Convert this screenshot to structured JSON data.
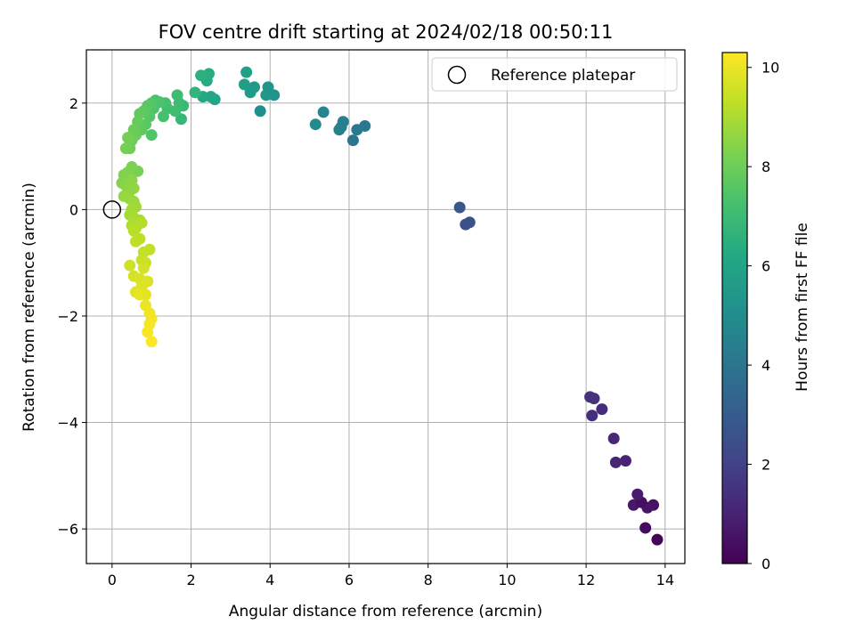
{
  "chart_data": {
    "type": "scatter",
    "title": "FOV centre drift starting at 2024/02/18 00:50:11",
    "xlabel": "Angular distance from reference (arcmin)",
    "ylabel": "Rotation from reference (arcmin)",
    "xlim": [
      -0.65,
      14.5
    ],
    "ylim": [
      -6.65,
      3.0
    ],
    "xticks": [
      0,
      2,
      4,
      6,
      8,
      10,
      12,
      14
    ],
    "yticks": [
      -6,
      -4,
      -2,
      0,
      2
    ],
    "xtick_labels": [
      "0",
      "2",
      "4",
      "6",
      "8",
      "10",
      "12",
      "14"
    ],
    "ytick_labels": [
      "−6",
      "−4",
      "−2",
      "0",
      "2"
    ],
    "grid": true,
    "legend": {
      "position": "upper right",
      "entries": [
        "Reference platepar"
      ]
    },
    "reference": {
      "x": 0,
      "y": 0,
      "label": "Reference platepar"
    },
    "colorbar": {
      "label": "Hours from first FF file",
      "colormap": "viridis",
      "range": [
        0,
        10.3
      ],
      "ticks": [
        0,
        2,
        4,
        6,
        8,
        10
      ],
      "tick_labels": [
        "0",
        "2",
        "4",
        "6",
        "8",
        "10"
      ]
    },
    "points": [
      {
        "x": 13.8,
        "y": -6.2,
        "h": 0.1
      },
      {
        "x": 13.5,
        "y": -5.98,
        "h": 0.3
      },
      {
        "x": 13.7,
        "y": -5.55,
        "h": 0.5
      },
      {
        "x": 13.55,
        "y": -5.6,
        "h": 0.6
      },
      {
        "x": 13.2,
        "y": -5.55,
        "h": 0.7
      },
      {
        "x": 13.4,
        "y": -5.5,
        "h": 0.4
      },
      {
        "x": 13.3,
        "y": -5.35,
        "h": 0.8
      },
      {
        "x": 13.0,
        "y": -4.72,
        "h": 1.0
      },
      {
        "x": 12.75,
        "y": -4.75,
        "h": 1.1
      },
      {
        "x": 12.7,
        "y": -4.3,
        "h": 1.2
      },
      {
        "x": 12.4,
        "y": -3.75,
        "h": 1.3
      },
      {
        "x": 12.15,
        "y": -3.87,
        "h": 1.4
      },
      {
        "x": 12.2,
        "y": -3.55,
        "h": 1.45
      },
      {
        "x": 12.1,
        "y": -3.52,
        "h": 1.5
      },
      {
        "x": 8.95,
        "y": -0.28,
        "h": 2.5
      },
      {
        "x": 9.05,
        "y": -0.24,
        "h": 2.6
      },
      {
        "x": 8.8,
        "y": 0.04,
        "h": 2.8
      },
      {
        "x": 6.1,
        "y": 1.3,
        "h": 4.0
      },
      {
        "x": 6.4,
        "y": 1.57,
        "h": 4.1
      },
      {
        "x": 6.2,
        "y": 1.5,
        "h": 4.2
      },
      {
        "x": 5.8,
        "y": 1.55,
        "h": 4.3
      },
      {
        "x": 5.85,
        "y": 1.65,
        "h": 4.4
      },
      {
        "x": 5.75,
        "y": 1.5,
        "h": 4.5
      },
      {
        "x": 5.35,
        "y": 1.83,
        "h": 4.7
      },
      {
        "x": 5.15,
        "y": 1.6,
        "h": 4.9
      },
      {
        "x": 3.75,
        "y": 1.85,
        "h": 5.1
      },
      {
        "x": 4.1,
        "y": 2.15,
        "h": 5.2
      },
      {
        "x": 3.95,
        "y": 2.3,
        "h": 5.3
      },
      {
        "x": 3.9,
        "y": 2.15,
        "h": 5.4
      },
      {
        "x": 3.6,
        "y": 2.3,
        "h": 5.5
      },
      {
        "x": 3.5,
        "y": 2.2,
        "h": 5.6
      },
      {
        "x": 3.35,
        "y": 2.35,
        "h": 5.7
      },
      {
        "x": 3.4,
        "y": 2.58,
        "h": 5.8
      },
      {
        "x": 2.6,
        "y": 2.07,
        "h": 6.0
      },
      {
        "x": 2.5,
        "y": 2.12,
        "h": 6.1
      },
      {
        "x": 2.3,
        "y": 2.12,
        "h": 6.2
      },
      {
        "x": 2.4,
        "y": 2.42,
        "h": 6.3
      },
      {
        "x": 2.45,
        "y": 2.55,
        "h": 6.4
      },
      {
        "x": 2.25,
        "y": 2.52,
        "h": 6.5
      },
      {
        "x": 2.1,
        "y": 2.2,
        "h": 6.7
      },
      {
        "x": 1.75,
        "y": 1.7,
        "h": 6.8
      },
      {
        "x": 1.8,
        "y": 1.95,
        "h": 6.9
      },
      {
        "x": 1.7,
        "y": 2.0,
        "h": 7.0
      },
      {
        "x": 1.65,
        "y": 2.15,
        "h": 7.05
      },
      {
        "x": 1.6,
        "y": 1.85,
        "h": 7.1
      },
      {
        "x": 1.4,
        "y": 1.9,
        "h": 7.15
      },
      {
        "x": 1.35,
        "y": 2.0,
        "h": 7.2
      },
      {
        "x": 1.3,
        "y": 1.75,
        "h": 7.25
      },
      {
        "x": 1.2,
        "y": 2.02,
        "h": 7.3
      },
      {
        "x": 1.1,
        "y": 2.05,
        "h": 7.35
      },
      {
        "x": 1.05,
        "y": 1.9,
        "h": 7.4
      },
      {
        "x": 1.0,
        "y": 1.4,
        "h": 7.45
      },
      {
        "x": 1.0,
        "y": 2.0,
        "h": 7.5
      },
      {
        "x": 0.95,
        "y": 1.75,
        "h": 7.55
      },
      {
        "x": 0.9,
        "y": 1.95,
        "h": 7.6
      },
      {
        "x": 0.85,
        "y": 1.6,
        "h": 7.65
      },
      {
        "x": 0.8,
        "y": 1.85,
        "h": 7.7
      },
      {
        "x": 0.75,
        "y": 1.5,
        "h": 7.75
      },
      {
        "x": 0.7,
        "y": 1.8,
        "h": 7.8
      },
      {
        "x": 0.65,
        "y": 1.65,
        "h": 7.85
      },
      {
        "x": 0.6,
        "y": 1.4,
        "h": 7.9
      },
      {
        "x": 0.55,
        "y": 1.5,
        "h": 7.95
      },
      {
        "x": 0.5,
        "y": 1.3,
        "h": 8.0
      },
      {
        "x": 0.45,
        "y": 1.15,
        "h": 8.05
      },
      {
        "x": 0.4,
        "y": 1.35,
        "h": 8.1
      },
      {
        "x": 0.35,
        "y": 1.15,
        "h": 8.15
      },
      {
        "x": 0.65,
        "y": 0.72,
        "h": 8.2
      },
      {
        "x": 0.5,
        "y": 0.8,
        "h": 8.25
      },
      {
        "x": 0.4,
        "y": 0.7,
        "h": 8.3
      },
      {
        "x": 0.3,
        "y": 0.65,
        "h": 8.35
      },
      {
        "x": 0.25,
        "y": 0.5,
        "h": 8.4
      },
      {
        "x": 0.35,
        "y": 0.45,
        "h": 8.45
      },
      {
        "x": 0.5,
        "y": 0.55,
        "h": 8.5
      },
      {
        "x": 0.45,
        "y": 0.35,
        "h": 8.55
      },
      {
        "x": 0.55,
        "y": 0.4,
        "h": 8.6
      },
      {
        "x": 0.3,
        "y": 0.25,
        "h": 8.65
      },
      {
        "x": 0.45,
        "y": 0.2,
        "h": 8.7
      },
      {
        "x": 0.55,
        "y": 0.15,
        "h": 8.75
      },
      {
        "x": 0.5,
        "y": 0.0,
        "h": 8.8
      },
      {
        "x": 0.6,
        "y": 0.05,
        "h": 8.85
      },
      {
        "x": 0.45,
        "y": -0.1,
        "h": 8.9
      },
      {
        "x": 0.55,
        "y": -0.15,
        "h": 8.95
      },
      {
        "x": 0.7,
        "y": -0.2,
        "h": 9.0
      },
      {
        "x": 0.5,
        "y": -0.3,
        "h": 9.05
      },
      {
        "x": 0.6,
        "y": -0.35,
        "h": 9.1
      },
      {
        "x": 0.75,
        "y": -0.25,
        "h": 9.15
      },
      {
        "x": 0.55,
        "y": -0.4,
        "h": 9.2
      },
      {
        "x": 0.7,
        "y": -0.55,
        "h": 9.25
      },
      {
        "x": 0.6,
        "y": -0.6,
        "h": 9.3
      },
      {
        "x": 0.95,
        "y": -0.75,
        "h": 9.35
      },
      {
        "x": 0.8,
        "y": -0.8,
        "h": 9.4
      },
      {
        "x": 0.75,
        "y": -0.95,
        "h": 9.45
      },
      {
        "x": 0.85,
        "y": -1.0,
        "h": 9.5
      },
      {
        "x": 0.45,
        "y": -1.05,
        "h": 9.55
      },
      {
        "x": 0.8,
        "y": -1.1,
        "h": 9.6
      },
      {
        "x": 0.55,
        "y": -1.25,
        "h": 9.65
      },
      {
        "x": 0.7,
        "y": -1.3,
        "h": 9.7
      },
      {
        "x": 0.9,
        "y": -1.35,
        "h": 9.75
      },
      {
        "x": 0.75,
        "y": -1.45,
        "h": 9.8
      },
      {
        "x": 0.6,
        "y": -1.55,
        "h": 9.85
      },
      {
        "x": 0.85,
        "y": -1.6,
        "h": 9.9
      },
      {
        "x": 0.7,
        "y": -1.6,
        "h": 9.95
      },
      {
        "x": 0.85,
        "y": -1.8,
        "h": 10.0
      },
      {
        "x": 0.95,
        "y": -1.95,
        "h": 10.05
      },
      {
        "x": 1.0,
        "y": -2.05,
        "h": 10.1
      },
      {
        "x": 0.95,
        "y": -2.15,
        "h": 10.15
      },
      {
        "x": 0.9,
        "y": -2.3,
        "h": 10.2
      },
      {
        "x": 1.0,
        "y": -2.48,
        "h": 10.25
      }
    ]
  }
}
